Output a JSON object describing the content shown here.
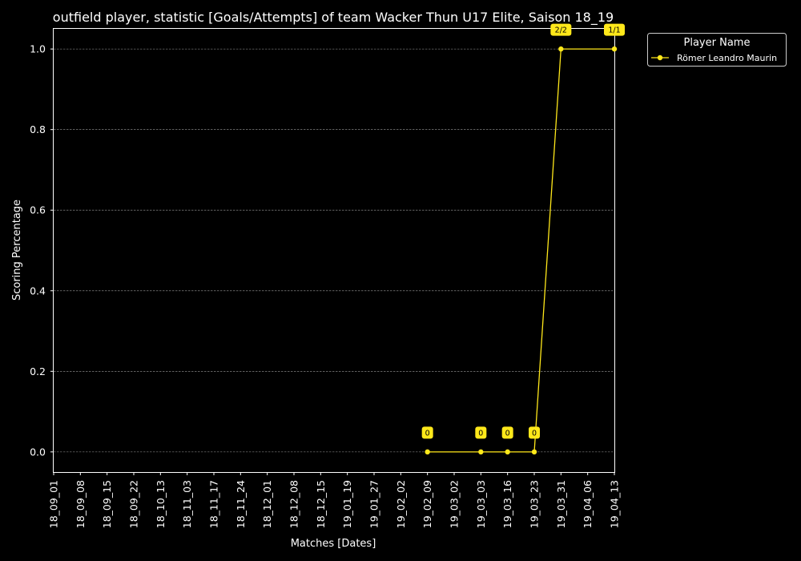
{
  "chart_data": {
    "type": "line",
    "title": "outfield player, statistic [Goals/Attempts] of team Wacker Thun U17 Elite, Saison 18_19",
    "xlabel": "Matches [Dates]",
    "ylabel": "Scoring Percentage",
    "categories": [
      "18_09_01",
      "18_09_08",
      "18_09_15",
      "18_09_22",
      "18_10_13",
      "18_11_03",
      "18_11_17",
      "18_11_24",
      "18_12_01",
      "18_12_08",
      "18_12_15",
      "19_01_19",
      "19_01_27",
      "19_02_02",
      "19_02_09",
      "19_03_02",
      "19_03_03",
      "19_03_16",
      "19_03_23",
      "19_03_31",
      "19_04_06",
      "19_04_13"
    ],
    "yticks": [
      "0.0",
      "0.2",
      "0.4",
      "0.6",
      "0.8",
      "1.0"
    ],
    "ylim": [
      -0.05,
      1.05
    ],
    "grid": true,
    "legend": {
      "title": "Player Name",
      "placement": "outside-top-right"
    },
    "series": [
      {
        "name": "Römer Leandro Maurin",
        "color": "#ffe81a",
        "points": [
          {
            "x": "19_02_09",
            "y": 0.0,
            "label": "0"
          },
          {
            "x": "19_03_03",
            "y": 0.0,
            "label": "0"
          },
          {
            "x": "19_03_16",
            "y": 0.0,
            "label": "0"
          },
          {
            "x": "19_03_23",
            "y": 0.0,
            "label": "0"
          },
          {
            "x": "19_03_31",
            "y": 1.0,
            "label": "2/2"
          },
          {
            "x": "19_04_13",
            "y": 1.0,
            "label": "1/1"
          }
        ]
      }
    ]
  }
}
